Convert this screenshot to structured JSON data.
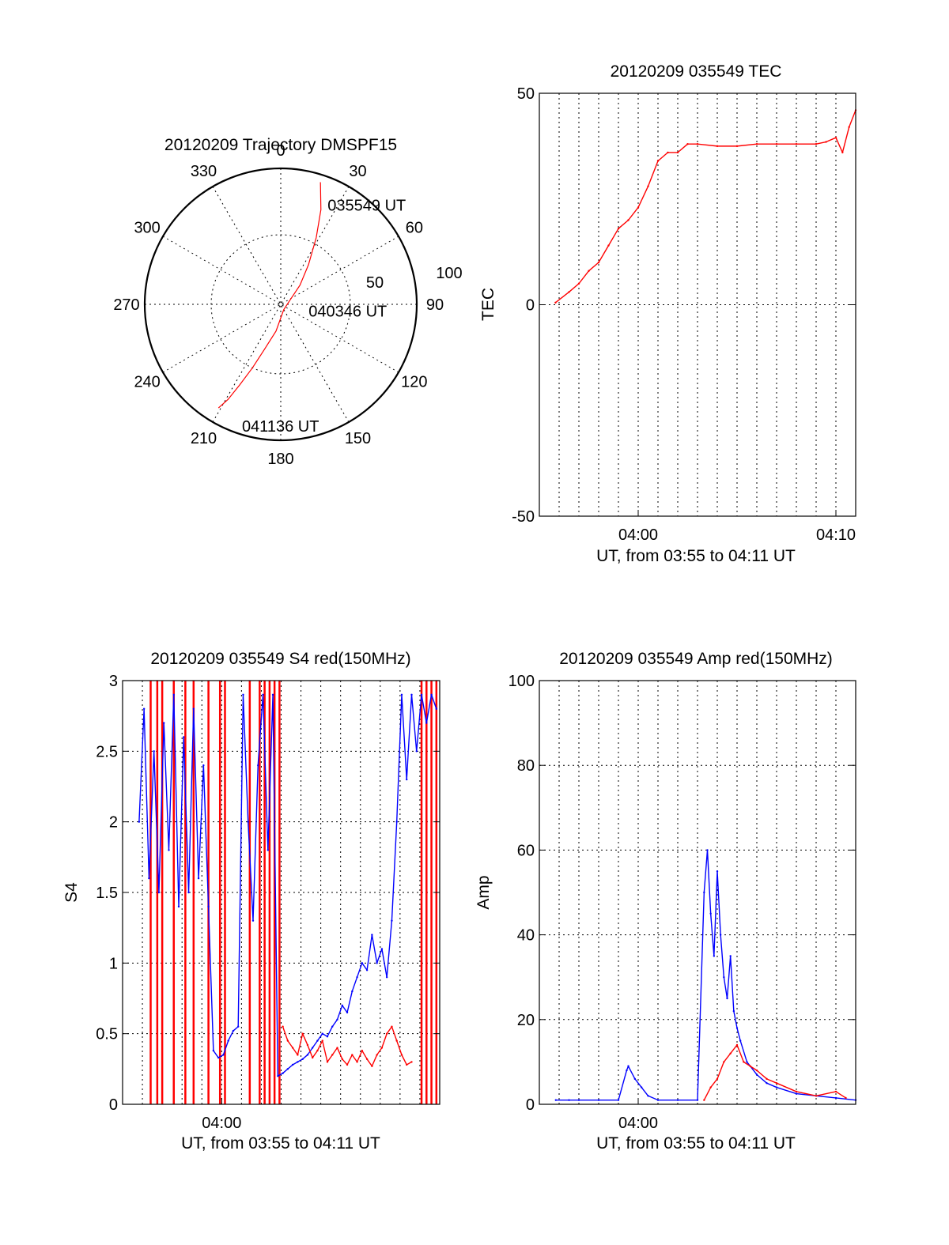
{
  "chart_data": [
    {
      "type": "polar",
      "title": "20120209 Trajectory DMSPF15",
      "azimuth_ticks": [
        "0",
        "30",
        "60",
        "90",
        "120",
        "150",
        "180",
        "210",
        "240",
        "270",
        "300",
        "330"
      ],
      "radial_ticks": [
        "50",
        "100"
      ],
      "grid": true,
      "series": [
        {
          "color": "#ff0000",
          "points_az_el": [
            [
              18,
              5
            ],
            [
              23,
              22
            ],
            [
              28,
              40
            ],
            [
              35,
              58
            ],
            [
              45,
              72
            ],
            [
              70,
              84
            ],
            [
              150,
              86
            ],
            [
              190,
              72
            ],
            [
              200,
              58
            ],
            [
              204,
              44
            ],
            [
              207,
              30
            ],
            [
              209,
              18
            ],
            [
              211,
              10
            ]
          ]
        }
      ],
      "annotations": [
        {
          "text": "035549 UT",
          "az": 28,
          "el": 15
        },
        {
          "text": "040346 UT",
          "az": 100,
          "el": 67
        },
        {
          "text": "041136 UT",
          "az": 195,
          "el": 7
        }
      ]
    },
    {
      "type": "line",
      "title": "20120209 035549 TEC",
      "xlabel": "UT, from 03:55 to 04:11 UT",
      "ylabel": "TEC",
      "x_range": [
        "03:55:00",
        "04:11:00"
      ],
      "xticks": [
        "04:00",
        "04:10"
      ],
      "yticks": [
        "-50",
        "0",
        "50"
      ],
      "ylim": [
        -50,
        50
      ],
      "grid": true,
      "series": [
        {
          "color": "#ff0000",
          "x": [
            "03:55:49",
            "03:56:30",
            "03:57:00",
            "03:57:30",
            "03:58:00",
            "03:58:30",
            "03:59:00",
            "03:59:30",
            "04:00:00",
            "04:00:30",
            "04:01:00",
            "04:01:30",
            "04:02:00",
            "04:02:30",
            "04:03:00",
            "04:04:00",
            "04:05:00",
            "04:06:00",
            "04:07:00",
            "04:08:00",
            "04:09:00",
            "04:09:30",
            "04:10:00",
            "04:10:20",
            "04:10:40",
            "04:11:00"
          ],
          "values": [
            0.5,
            3,
            5,
            8,
            10,
            14,
            18,
            20,
            23,
            28,
            34,
            36,
            36,
            38,
            38,
            37.5,
            37.5,
            38,
            38,
            38,
            38,
            38.5,
            39.5,
            36,
            42,
            46
          ]
        }
      ]
    },
    {
      "type": "line",
      "title": "20120209 035549 S4 red(150MHz)",
      "xlabel": "UT, from 03:55 to 04:11 UT",
      "ylabel": "S4",
      "x_range": [
        "03:55:00",
        "04:11:00"
      ],
      "xticks": [
        "04:00"
      ],
      "yticks": [
        "0",
        "0.5",
        "1",
        "1.5",
        "2",
        "2.5",
        "3"
      ],
      "ylim": [
        0,
        3
      ],
      "grid": true,
      "series": [
        {
          "color": "#0000ff",
          "x": [
            "03:55:50",
            "03:56:05",
            "03:56:20",
            "03:56:35",
            "03:56:50",
            "03:57:05",
            "03:57:20",
            "03:57:35",
            "03:57:50",
            "03:58:05",
            "03:58:20",
            "03:58:35",
            "03:58:50",
            "03:59:05",
            "03:59:20",
            "03:59:35",
            "03:59:50",
            "04:00:05",
            "04:00:20",
            "04:00:35",
            "04:00:50",
            "04:01:05",
            "04:01:20",
            "04:01:35",
            "04:01:50",
            "04:02:05",
            "04:02:20",
            "04:02:35",
            "04:02:50",
            "04:03:05",
            "04:03:20",
            "04:03:35",
            "04:03:50",
            "04:04:05",
            "04:04:20",
            "04:04:35",
            "04:04:50",
            "04:05:05",
            "04:05:20",
            "04:05:35",
            "04:05:50",
            "04:06:05",
            "04:06:20",
            "04:06:35",
            "04:06:50",
            "04:07:05",
            "04:07:20",
            "04:07:35",
            "04:07:50",
            "04:08:05",
            "04:08:20",
            "04:08:35",
            "04:08:50",
            "04:09:05",
            "04:09:20",
            "04:09:35",
            "04:09:50",
            "04:10:05",
            "04:10:20",
            "04:10:35",
            "04:10:50"
          ],
          "values": [
            2.0,
            2.8,
            1.6,
            2.5,
            1.5,
            2.7,
            1.8,
            2.9,
            1.4,
            2.6,
            1.5,
            2.8,
            1.6,
            2.4,
            1.4,
            0.38,
            0.33,
            0.35,
            0.45,
            0.52,
            0.55,
            2.9,
            2.0,
            1.3,
            2.4,
            2.9,
            1.8,
            2.9,
            0.2,
            0.22,
            0.25,
            0.28,
            0.3,
            0.32,
            0.35,
            0.4,
            0.45,
            0.5,
            0.48,
            0.55,
            0.6,
            0.7,
            0.65,
            0.8,
            0.9,
            1.0,
            0.95,
            1.2,
            1.0,
            1.1,
            0.9,
            1.3,
            2.0,
            2.9,
            2.3,
            2.9,
            2.5,
            2.9,
            2.7,
            2.9,
            2.8
          ]
        },
        {
          "color": "#ff0000",
          "x": [
            "04:03:05",
            "04:03:20",
            "04:03:35",
            "04:03:50",
            "04:04:05",
            "04:04:20",
            "04:04:35",
            "04:04:50",
            "04:05:05",
            "04:05:20",
            "04:05:35",
            "04:05:50",
            "04:06:05",
            "04:06:20",
            "04:06:35",
            "04:06:50",
            "04:07:05",
            "04:07:20",
            "04:07:35",
            "04:07:50",
            "04:08:05",
            "04:08:20",
            "04:08:35",
            "04:08:50",
            "04:09:05",
            "04:09:20",
            "04:09:35"
          ],
          "values": [
            0.55,
            0.45,
            0.4,
            0.35,
            0.5,
            0.42,
            0.33,
            0.38,
            0.45,
            0.3,
            0.35,
            0.4,
            0.32,
            0.28,
            0.35,
            0.3,
            0.38,
            0.32,
            0.27,
            0.35,
            0.4,
            0.5,
            0.55,
            0.45,
            0.35,
            0.28,
            0.3
          ]
        }
      ],
      "red_saturation_spikes_x": [
        "03:56:25",
        "03:56:45",
        "03:57:00",
        "03:57:35",
        "03:58:10",
        "03:58:35",
        "03:59:20",
        "03:59:55",
        "04:00:10",
        "04:01:25",
        "04:01:55",
        "04:02:10",
        "04:02:25",
        "04:02:40",
        "04:02:55",
        "04:10:05",
        "04:10:20",
        "04:10:35",
        "04:10:50"
      ]
    },
    {
      "type": "line",
      "title": "20120209 035549 Amp red(150MHz)",
      "xlabel": "UT, from 03:55 to 04:11 UT",
      "ylabel": "Amp",
      "x_range": [
        "03:55:00",
        "04:11:00"
      ],
      "xticks": [
        "04:00"
      ],
      "yticks": [
        "0",
        "20",
        "40",
        "60",
        "80",
        "100"
      ],
      "ylim": [
        0,
        100
      ],
      "grid": true,
      "series": [
        {
          "color": "#0000ff",
          "x": [
            "03:55:50",
            "03:56:30",
            "03:57:00",
            "03:58:00",
            "03:59:00",
            "03:59:25",
            "03:59:30",
            "03:59:50",
            "04:00:10",
            "04:00:30",
            "04:01:00",
            "04:02:00",
            "04:03:00",
            "04:03:20",
            "04:03:30",
            "04:03:40",
            "04:03:50",
            "04:04:00",
            "04:04:10",
            "04:04:20",
            "04:04:30",
            "04:04:40",
            "04:04:50",
            "04:05:00",
            "04:05:10",
            "04:05:30",
            "04:06:00",
            "04:06:30",
            "04:07:00",
            "04:08:00",
            "04:09:00",
            "04:10:00",
            "04:11:00"
          ],
          "values": [
            1,
            1,
            1,
            1,
            1,
            8,
            9,
            6,
            4,
            2,
            1,
            1,
            1,
            50,
            60,
            45,
            35,
            55,
            40,
            30,
            25,
            35,
            22,
            18,
            15,
            10,
            7,
            5,
            4,
            2.5,
            2,
            1.5,
            1
          ]
        },
        {
          "color": "#ff0000",
          "x": [
            "04:03:20",
            "04:03:40",
            "04:04:00",
            "04:04:20",
            "04:04:40",
            "04:05:00",
            "04:05:20",
            "04:05:40",
            "04:06:00",
            "04:06:30",
            "04:07:00",
            "04:08:00",
            "04:09:00",
            "04:10:00",
            "04:10:30"
          ],
          "values": [
            1,
            4,
            6,
            10,
            12,
            14,
            10,
            9,
            8,
            6,
            5,
            3,
            2,
            3,
            1.5
          ]
        }
      ]
    }
  ]
}
